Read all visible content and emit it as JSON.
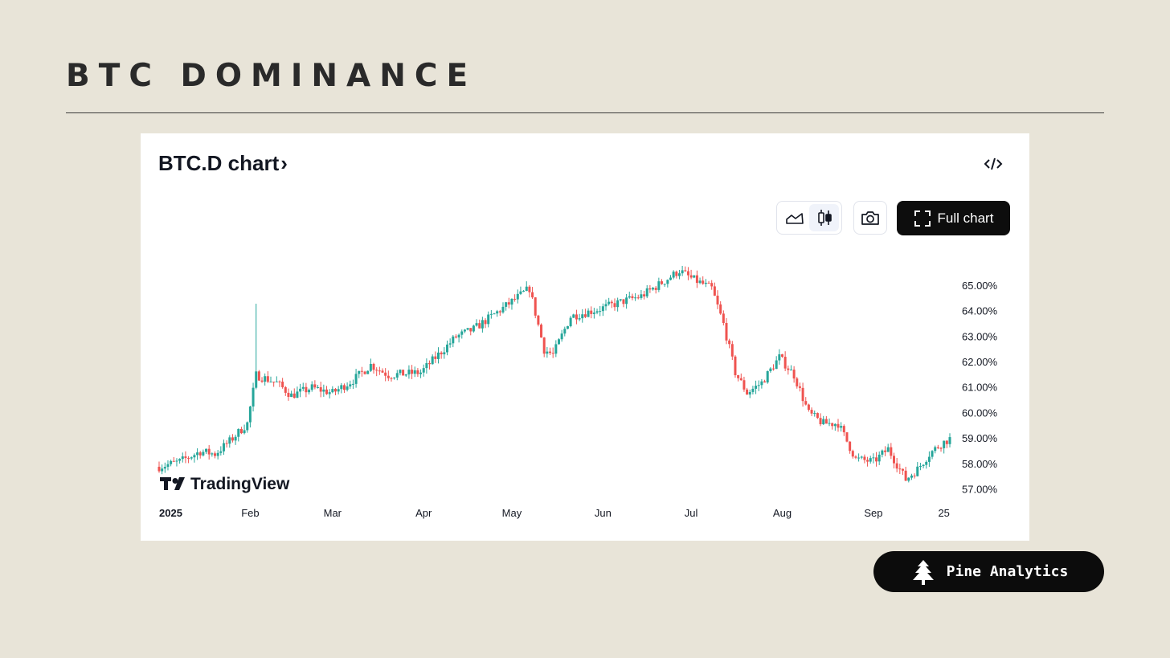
{
  "header": {
    "title": "BTC DOMINANCE"
  },
  "card": {
    "title": "BTC.D chart",
    "title_chevron": "›",
    "embed_icon": "code-embed-icon",
    "toggle_icons": [
      "area-chart-icon",
      "candlestick-icon"
    ],
    "snapshot_icon": "camera-icon",
    "full_chart_label": "Full chart",
    "full_chart_icon": "expand-frame-icon",
    "watermark": "TradingView"
  },
  "badge": {
    "label": "Pine Analytics",
    "icon": "pine-tree-icon"
  },
  "colors": {
    "up": "#26a69a",
    "down": "#ef5350",
    "background": "#e8e4d8",
    "button": "#0d0d0d"
  },
  "chart_data": {
    "type": "candlestick",
    "x_tick_labels": [
      "2025",
      "Feb",
      "Mar",
      "Apr",
      "May",
      "Jun",
      "Jul",
      "Aug",
      "Sep",
      "25"
    ],
    "y_tick_labels": [
      "65.00%",
      "64.00%",
      "63.00%",
      "62.00%",
      "61.00%",
      "60.00%",
      "59.00%",
      "58.00%",
      "57.00%"
    ],
    "ylim": [
      56.7,
      66.1
    ],
    "y_position": "right",
    "grid": false,
    "close_path": [
      [
        "2025-01-01",
        57.9
      ],
      [
        "2025-01-08",
        58.1
      ],
      [
        "2025-01-15",
        58.5
      ],
      [
        "2025-01-20",
        58.4
      ],
      [
        "2025-01-25",
        58.9
      ],
      [
        "2025-01-31",
        59.6
      ],
      [
        "2025-02-03",
        61.5
      ],
      [
        "2025-02-10",
        61.2
      ],
      [
        "2025-02-15",
        60.7
      ],
      [
        "2025-02-22",
        61.0
      ],
      [
        "2025-03-01",
        60.8
      ],
      [
        "2025-03-08",
        61.3
      ],
      [
        "2025-03-14",
        61.9
      ],
      [
        "2025-03-20",
        61.5
      ],
      [
        "2025-03-31",
        61.6
      ],
      [
        "2025-04-06",
        62.3
      ],
      [
        "2025-04-12",
        63.0
      ],
      [
        "2025-04-18",
        63.3
      ],
      [
        "2025-04-24",
        63.8
      ],
      [
        "2025-04-30",
        64.3
      ],
      [
        "2025-05-07",
        64.9
      ],
      [
        "2025-05-12",
        62.5
      ],
      [
        "2025-05-15",
        62.3
      ],
      [
        "2025-05-21",
        63.8
      ],
      [
        "2025-05-31",
        64.1
      ],
      [
        "2025-06-08",
        64.4
      ],
      [
        "2025-06-14",
        64.6
      ],
      [
        "2025-06-22",
        65.2
      ],
      [
        "2025-06-27",
        65.6
      ],
      [
        "2025-07-01",
        65.3
      ],
      [
        "2025-07-08",
        64.9
      ],
      [
        "2025-07-12",
        63.5
      ],
      [
        "2025-07-16",
        61.6
      ],
      [
        "2025-07-20",
        60.8
      ],
      [
        "2025-07-25",
        61.2
      ],
      [
        "2025-07-31",
        62.2
      ],
      [
        "2025-08-05",
        61.5
      ],
      [
        "2025-08-10",
        60.0
      ],
      [
        "2025-08-15",
        59.6
      ],
      [
        "2025-08-20",
        59.6
      ],
      [
        "2025-08-26",
        58.2
      ],
      [
        "2025-09-01",
        58.1
      ],
      [
        "2025-09-06",
        58.6
      ],
      [
        "2025-09-12",
        57.4
      ],
      [
        "2025-09-16",
        57.8
      ],
      [
        "2025-09-20",
        58.4
      ],
      [
        "2025-09-24",
        58.8
      ],
      [
        "2025-09-27",
        59.0
      ]
    ],
    "spikes": [
      {
        "date": "2025-02-03",
        "high": 64.3
      }
    ]
  }
}
